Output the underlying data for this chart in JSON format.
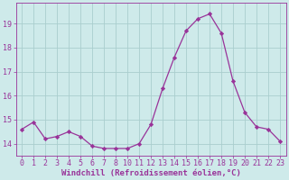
{
  "x_indices": [
    0,
    1,
    2,
    3,
    4,
    5,
    6,
    7,
    8,
    9,
    10,
    11,
    12,
    13,
    14,
    15,
    16,
    17,
    18,
    19,
    20,
    21,
    22
  ],
  "x_labels": [
    "0",
    "1",
    "2",
    "3",
    "4",
    "5",
    "6",
    "7",
    "8",
    "10",
    "11",
    "12",
    "13",
    "14",
    "15",
    "16",
    "17",
    "18",
    "19",
    "20",
    "21",
    "22",
    "23"
  ],
  "y": [
    14.6,
    14.9,
    14.2,
    14.3,
    14.5,
    14.3,
    13.9,
    13.8,
    13.8,
    13.8,
    14.0,
    14.8,
    16.3,
    17.6,
    18.7,
    19.2,
    19.4,
    18.6,
    16.6,
    15.3,
    14.7,
    14.6,
    14.1
  ],
  "line_color": "#993399",
  "marker": "D",
  "marker_size": 2.2,
  "bg_color": "#ceeaea",
  "grid_color": "#aacece",
  "xlabel": "Windchill (Refroidissement éolien,°C)",
  "ylim": [
    13.5,
    19.85
  ],
  "yticks": [
    14,
    15,
    16,
    17,
    18,
    19
  ],
  "label_color": "#993399",
  "font_size": 6.0,
  "xlabel_fontsize": 6.5,
  "linewidth": 0.9
}
